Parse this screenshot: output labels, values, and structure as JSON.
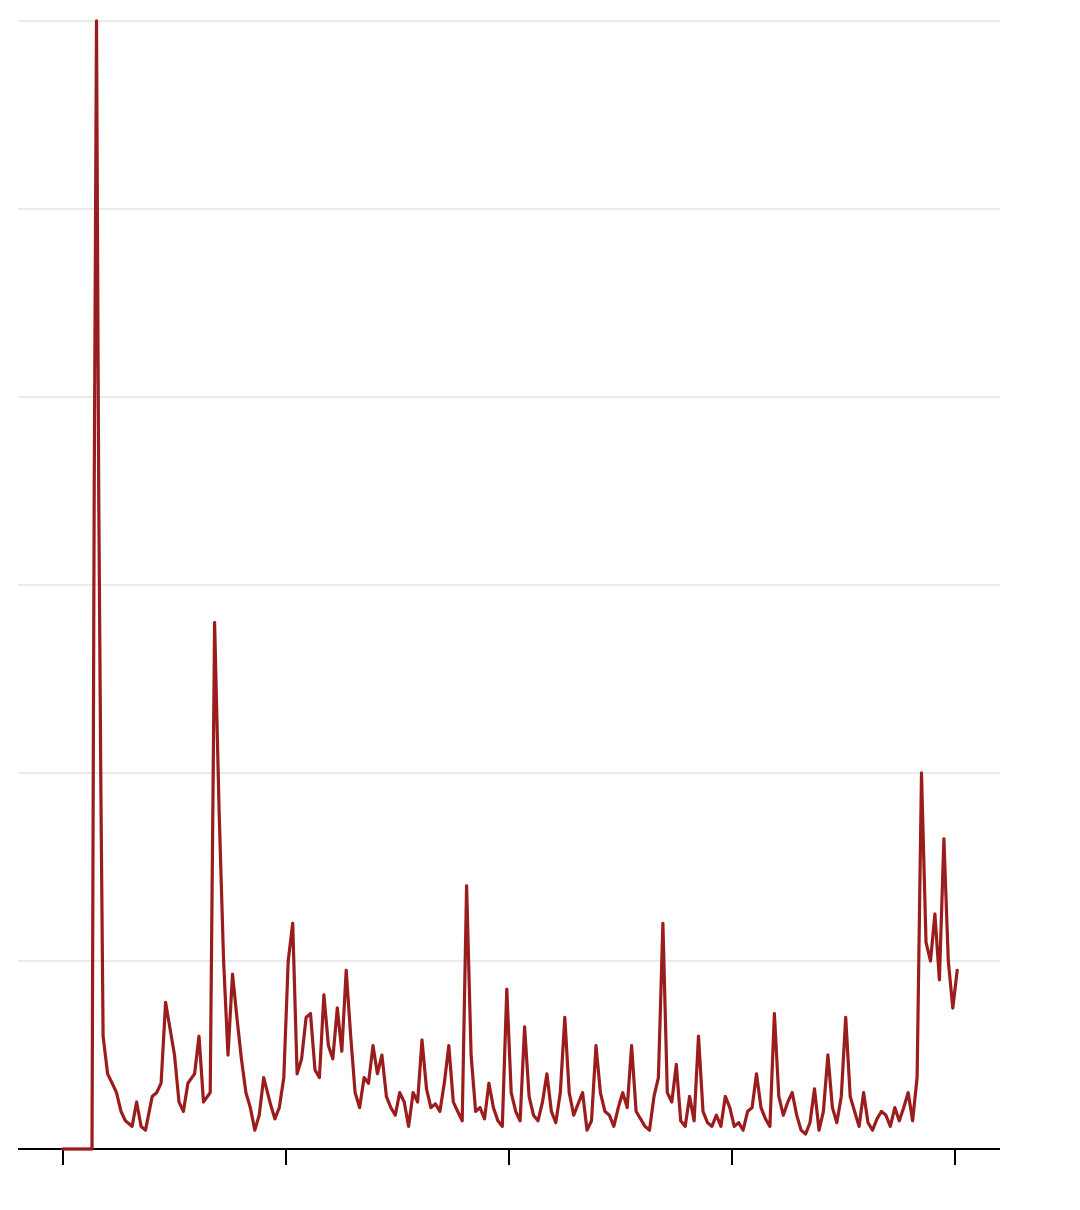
{
  "colors": {
    "series": "#9b1c1c",
    "grid": "#ebebeb",
    "axis": "#000000",
    "background": "#ffffff"
  },
  "chart_data": {
    "type": "line",
    "title": "",
    "xlabel": "",
    "ylabel": "",
    "x_tick_labels": [
      "",
      "",
      "",
      "",
      ""
    ],
    "y_tick_labels": [
      "",
      "",
      "",
      "",
      "",
      "",
      ""
    ],
    "grid": "horizontal",
    "legend": "none",
    "xlim": [
      0,
      400
    ],
    "ylim": [
      0,
      6
    ],
    "x_ticks": [
      0,
      100,
      200,
      300,
      400
    ],
    "y_gridlines": [
      1,
      2,
      3,
      4,
      5,
      6
    ],
    "series": [
      {
        "x": [
          0,
          7,
          13,
          14,
          15,
          16,
          17,
          18,
          20,
          22,
          24,
          26,
          28,
          31,
          33,
          35,
          37,
          40,
          42,
          44,
          46,
          50,
          52,
          54,
          56,
          59,
          61,
          63,
          66,
          68,
          70,
          72,
          74,
          76,
          78,
          80,
          82,
          84,
          86,
          88,
          90,
          93,
          95,
          97,
          99,
          101,
          103,
          105,
          107,
          109,
          111,
          113,
          115,
          117,
          119,
          121,
          123,
          125,
          127,
          129,
          131,
          133,
          135,
          137,
          139,
          141,
          143,
          145,
          147,
          149,
          151,
          153,
          155,
          157,
          159,
          161,
          163,
          165,
          167,
          169,
          171,
          173,
          175,
          177,
          179,
          181,
          183,
          185,
          187,
          189,
          191,
          193,
          195,
          197,
          199,
          201,
          203,
          205,
          207,
          209,
          211,
          213,
          215,
          217,
          219,
          221,
          223,
          225,
          227,
          229,
          231,
          233,
          235,
          237,
          239,
          241,
          243,
          245,
          247,
          249,
          251,
          253,
          255,
          257,
          259,
          261,
          263,
          265,
          267,
          269,
          271,
          273,
          275,
          277,
          279,
          281,
          283,
          285,
          287,
          289,
          291,
          293,
          295,
          297,
          299,
          301,
          303,
          305,
          307,
          309,
          311,
          313,
          315,
          317,
          319,
          321,
          323,
          325,
          327,
          329,
          331,
          333,
          335,
          337,
          339,
          341,
          343,
          345,
          347,
          349,
          351,
          353,
          355,
          357,
          359,
          361,
          363,
          365,
          367,
          369,
          371,
          373,
          375,
          377,
          379,
          381,
          383,
          385,
          387,
          389,
          391,
          393,
          395,
          397,
          399,
          401
        ],
        "values": [
          0,
          0,
          0,
          3.5,
          6.0,
          3.5,
          1.9,
          0.6,
          0.4,
          0.35,
          0.3,
          0.2,
          0.15,
          0.12,
          0.25,
          0.12,
          0.1,
          0.28,
          0.3,
          0.35,
          0.78,
          0.5,
          0.25,
          0.2,
          0.35,
          0.4,
          0.6,
          0.25,
          0.3,
          2.8,
          1.8,
          1.0,
          0.5,
          0.93,
          0.7,
          0.48,
          0.3,
          0.22,
          0.1,
          0.18,
          0.38,
          0.24,
          0.16,
          0.22,
          0.38,
          1.0,
          1.2,
          0.4,
          0.48,
          0.7,
          0.72,
          0.42,
          0.38,
          0.82,
          0.55,
          0.48,
          0.75,
          0.52,
          0.95,
          0.6,
          0.3,
          0.22,
          0.38,
          0.35,
          0.55,
          0.4,
          0.5,
          0.28,
          0.22,
          0.18,
          0.3,
          0.25,
          0.12,
          0.3,
          0.25,
          0.58,
          0.32,
          0.22,
          0.24,
          0.2,
          0.35,
          0.55,
          0.25,
          0.2,
          0.15,
          1.4,
          0.5,
          0.2,
          0.22,
          0.16,
          0.35,
          0.22,
          0.15,
          0.12,
          0.85,
          0.3,
          0.2,
          0.15,
          0.65,
          0.28,
          0.18,
          0.15,
          0.25,
          0.4,
          0.2,
          0.14,
          0.3,
          0.7,
          0.3,
          0.18,
          0.24,
          0.3,
          0.1,
          0.15,
          0.55,
          0.3,
          0.2,
          0.18,
          0.12,
          0.22,
          0.3,
          0.22,
          0.55,
          0.2,
          0.16,
          0.12,
          0.1,
          0.28,
          0.38,
          1.2,
          0.3,
          0.25,
          0.45,
          0.15,
          0.12,
          0.28,
          0.15,
          0.6,
          0.2,
          0.14,
          0.12,
          0.18,
          0.12,
          0.28,
          0.22,
          0.12,
          0.14,
          0.1,
          0.2,
          0.22,
          0.4,
          0.22,
          0.16,
          0.12,
          0.72,
          0.28,
          0.18,
          0.25,
          0.3,
          0.18,
          0.1,
          0.08,
          0.14,
          0.32,
          0.1,
          0.2,
          0.5,
          0.22,
          0.14,
          0.28,
          0.7,
          0.28,
          0.2,
          0.12,
          0.3,
          0.14,
          0.1,
          0.16,
          0.2,
          0.18,
          0.12,
          0.22,
          0.15,
          0.22,
          0.3,
          0.15,
          0.38,
          2.0,
          1.1,
          1.0,
          1.25,
          0.9,
          1.65,
          1.0,
          0.75,
          0.95
        ]
      }
    ]
  }
}
